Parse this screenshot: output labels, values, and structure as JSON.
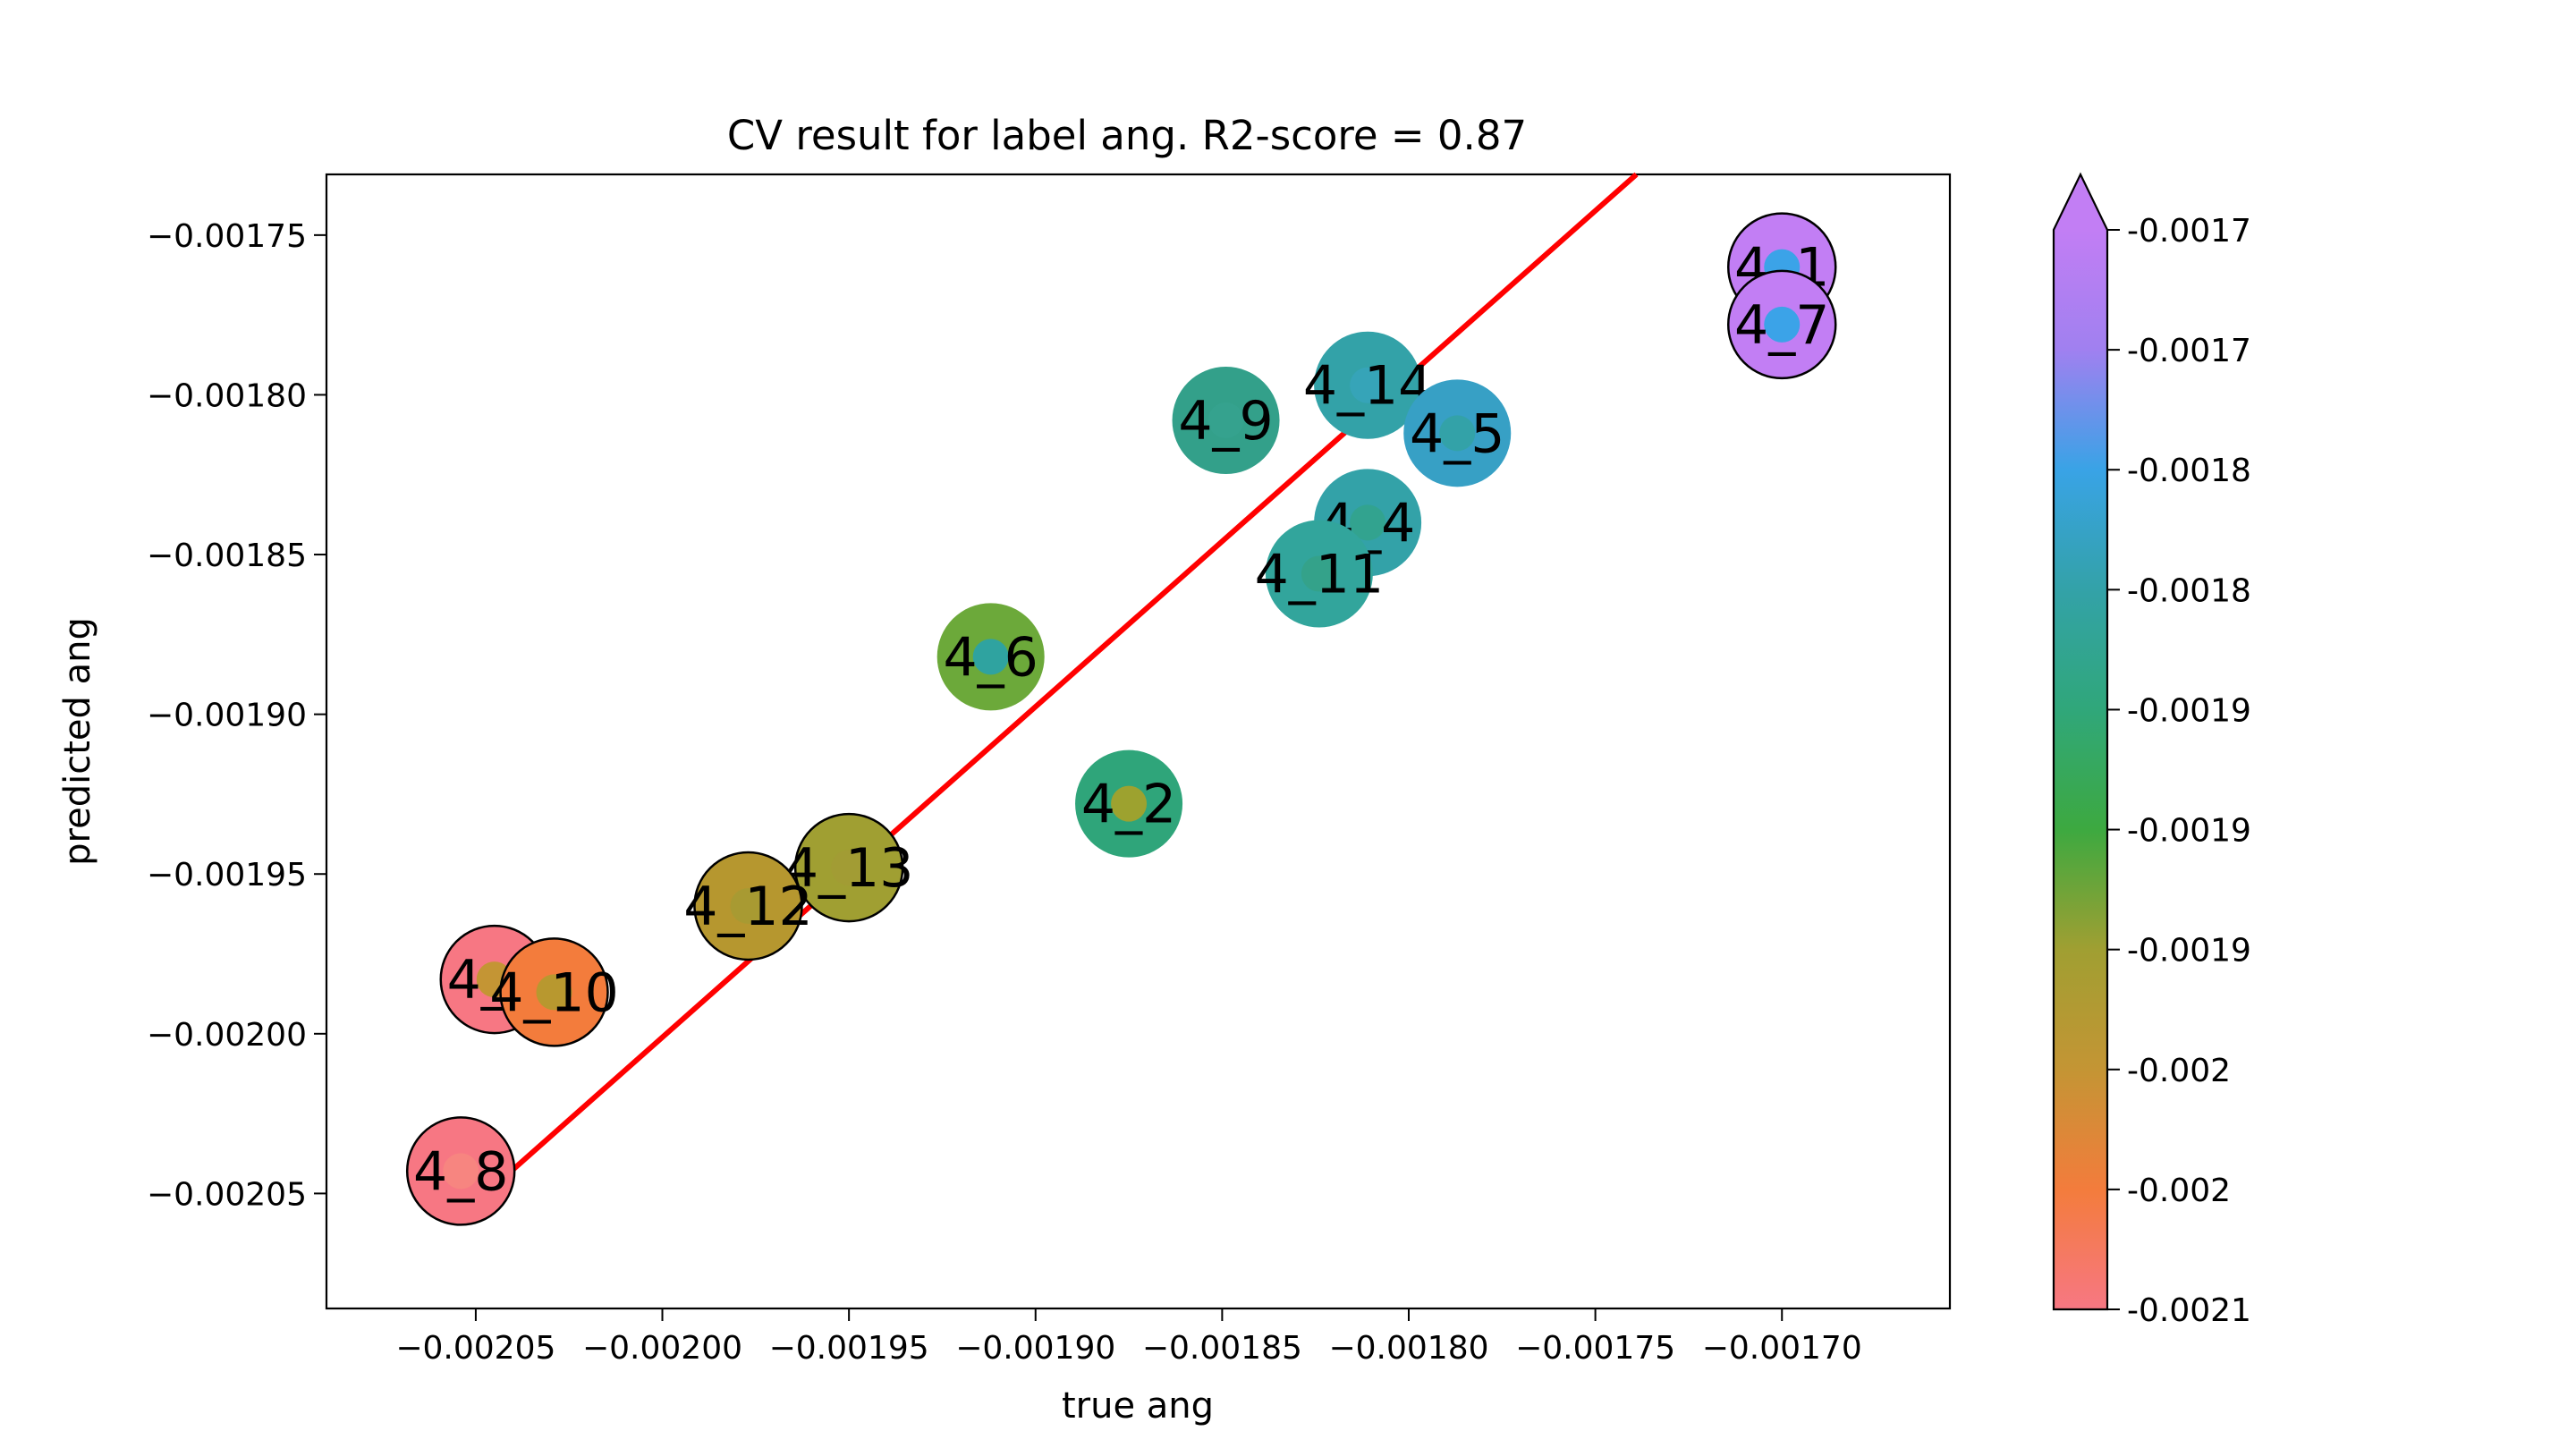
{
  "chart_data": {
    "type": "scatter",
    "title": "CV result for label ang. R2-score = 0.87",
    "xlabel": "true ang",
    "ylabel": "predicted ang",
    "xlim": [
      -0.00209,
      -0.001655
    ],
    "ylim": [
      -0.002086,
      -0.001731
    ],
    "x_ticks": [
      {
        "value": -0.00205,
        "label": "−0.00205"
      },
      {
        "value": -0.002,
        "label": "−0.00200"
      },
      {
        "value": -0.00195,
        "label": "−0.00195"
      },
      {
        "value": -0.0019,
        "label": "−0.00190"
      },
      {
        "value": -0.00185,
        "label": "−0.00185"
      },
      {
        "value": -0.0018,
        "label": "−0.00180"
      },
      {
        "value": -0.00175,
        "label": "−0.00175"
      },
      {
        "value": -0.0017,
        "label": "−0.00170"
      }
    ],
    "y_ticks": [
      {
        "value": -0.00175,
        "label": "−0.00175"
      },
      {
        "value": -0.0018,
        "label": "−0.00180"
      },
      {
        "value": -0.00185,
        "label": "−0.00185"
      },
      {
        "value": -0.0019,
        "label": "−0.00190"
      },
      {
        "value": -0.00195,
        "label": "−0.00195"
      },
      {
        "value": -0.002,
        "label": "−0.00200"
      },
      {
        "value": -0.00205,
        "label": "−0.00205"
      }
    ],
    "points": [
      {
        "label": "4_1",
        "x": -0.0017,
        "y": -0.00176,
        "color": "#c27ef4",
        "inner_color": "#3ba3e8"
      },
      {
        "label": "4_7",
        "x": -0.0017,
        "y": -0.001778,
        "color": "#c27ef4",
        "inner_color": "#3ba3e8"
      },
      {
        "label": "4_14",
        "x": -0.001811,
        "y": -0.001797,
        "color": "#33a2a8",
        "inner_color": "#36a4b8"
      },
      {
        "label": "4_9",
        "x": -0.001849,
        "y": -0.001808,
        "color": "#33a08a",
        "inner_color": "#35a28e"
      },
      {
        "label": "4_5",
        "x": -0.001787,
        "y": -0.001812,
        "color": "#37a0c5",
        "inner_color": "#33a2a8"
      },
      {
        "label": "4_4",
        "x": -0.001811,
        "y": -0.00184,
        "color": "#33a2a8",
        "inner_color": "#32a38f"
      },
      {
        "label": "4_11",
        "x": -0.001824,
        "y": -0.001856,
        "color": "#32a59c",
        "inner_color": "#34a28a"
      },
      {
        "label": "4_6",
        "x": -0.001912,
        "y": -0.001882,
        "color": "#6ca93a",
        "inner_color": "#2fa3a0"
      },
      {
        "label": "4_2",
        "x": -0.001875,
        "y": -0.001928,
        "color": "#2fa57a",
        "inner_color": "#9da22f"
      },
      {
        "label": "4_13",
        "x": -0.00195,
        "y": -0.001948,
        "color": "#a09f32",
        "inner_color": "#a29c34"
      },
      {
        "label": "4_12",
        "x": -0.001977,
        "y": -0.00196,
        "color": "#b6972f",
        "inner_color": "#a89a32"
      },
      {
        "label": "4_3",
        "x": -0.002045,
        "y": -0.001983,
        "color": "#f77783",
        "inner_color": "#c49534"
      },
      {
        "label": "4_10",
        "x": -0.002029,
        "y": -0.001987,
        "color": "#f37c3c",
        "inner_color": "#b8982f"
      },
      {
        "label": "4_8",
        "x": -0.002054,
        "y": -0.002043,
        "color": "#f77783",
        "inner_color": "#f78580"
      }
    ],
    "fit_line": {
      "color": "#ff0000",
      "x": [
        -0.002054,
        -0.001739
      ],
      "y": [
        -0.002057,
        -0.001731
      ]
    },
    "colorbar": {
      "tick_labels": [
        "-0.0021",
        "-0.002",
        "-0.002",
        "-0.0019",
        "-0.0019",
        "-0.0019",
        "-0.0018",
        "-0.0018",
        "-0.0017",
        "-0.0017"
      ],
      "colors": [
        "#f77783",
        "#f37c3c",
        "#c49534",
        "#a09f32",
        "#3da940",
        "#30a77a",
        "#33a2a8",
        "#39a3e6",
        "#a080f0",
        "#c27ef4"
      ],
      "extend": "max"
    }
  }
}
